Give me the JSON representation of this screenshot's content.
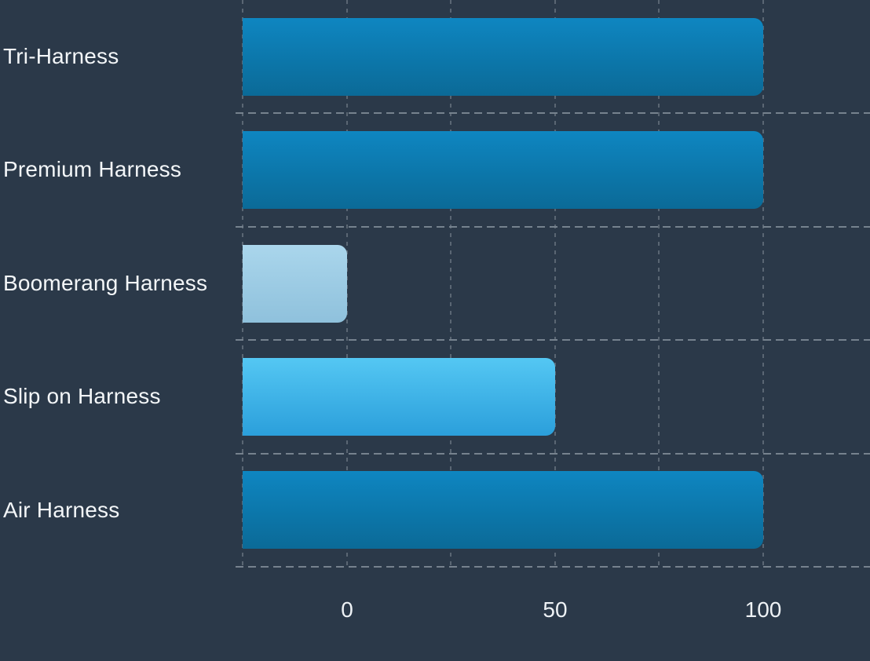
{
  "colors": {
    "background": "#2b3949",
    "grid_horizontal": "#76828e",
    "grid_vertical": "#5a6673",
    "label_text": "#f3f6f8",
    "tick_text": "#eef2f5"
  },
  "chart_data": {
    "type": "bar",
    "orientation": "horizontal",
    "title": "",
    "xlabel": "",
    "ylabel": "",
    "categories": [
      "Tri-Harness",
      "Premium Harness",
      "Boomerang Harness",
      "Slip on Harness",
      "Air Harness"
    ],
    "values": [
      100,
      100,
      0,
      50,
      100
    ],
    "x_ticks": [
      "0",
      "50",
      "100"
    ],
    "x_tick_values": [
      0,
      50,
      100
    ],
    "x_range": [
      -25,
      126
    ],
    "minor_grid_step": 25,
    "grid": "dashed",
    "legend": "none",
    "bars_anchored_at": -25,
    "bar_styles": [
      {
        "name": "dark-blue",
        "gradient_top": "#0e86c1",
        "gradient_bottom": "#0b6a97"
      },
      {
        "name": "dark-blue",
        "gradient_top": "#0e86c1",
        "gradient_bottom": "#0b6a97"
      },
      {
        "name": "pale-blue",
        "gradient_top": "#aad6ec",
        "gradient_bottom": "#8fc1dc"
      },
      {
        "name": "sky-blue",
        "gradient_top": "#54c7f3",
        "gradient_bottom": "#2b9fdb"
      },
      {
        "name": "dark-blue",
        "gradient_top": "#0e86c1",
        "gradient_bottom": "#0b6a97"
      }
    ]
  }
}
